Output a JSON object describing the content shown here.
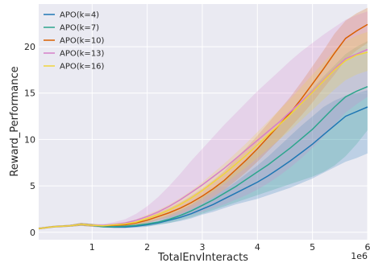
{
  "chart_data": {
    "type": "line",
    "xlabel": "TotalEnvInteracts",
    "ylabel": "Reward_Performance",
    "x_offset_label": "1e6",
    "xlim": [
      0.03,
      6.0
    ],
    "ylim": [
      -0.8,
      24.6
    ],
    "xticks": [
      1,
      2,
      3,
      4,
      5,
      6
    ],
    "yticks": [
      0,
      5,
      10,
      15,
      20
    ],
    "grid": true,
    "legend_position": "top-left",
    "x": [
      0.03,
      0.3,
      0.6,
      0.8,
      1.0,
      1.2,
      1.4,
      1.6,
      1.8,
      2.0,
      2.2,
      2.4,
      2.6,
      2.8,
      3.0,
      3.2,
      3.4,
      3.6,
      3.8,
      4.0,
      4.2,
      4.4,
      4.6,
      4.8,
      5.0,
      5.2,
      5.4,
      5.6,
      5.8,
      6.0
    ],
    "series": [
      {
        "name": "APO(k=4)",
        "color": "#1f77b4",
        "values": [
          0.4,
          0.6,
          0.7,
          0.85,
          0.75,
          0.6,
          0.55,
          0.55,
          0.65,
          0.8,
          1.0,
          1.3,
          1.6,
          2.0,
          2.5,
          3.0,
          3.6,
          4.2,
          4.8,
          5.4,
          6.1,
          6.9,
          7.7,
          8.6,
          9.5,
          10.5,
          11.5,
          12.5,
          13.0,
          13.5
        ],
        "lower": [
          0.3,
          0.5,
          0.6,
          0.7,
          0.6,
          0.5,
          0.45,
          0.45,
          0.5,
          0.6,
          0.8,
          1.0,
          1.2,
          1.5,
          1.9,
          2.2,
          2.6,
          3.0,
          3.3,
          3.6,
          4.0,
          4.4,
          4.8,
          5.3,
          5.8,
          6.4,
          7.0,
          7.6,
          8.0,
          8.5
        ],
        "upper": [
          0.5,
          0.7,
          0.8,
          1.0,
          0.9,
          0.7,
          0.65,
          0.7,
          0.8,
          1.0,
          1.2,
          1.6,
          2.0,
          2.5,
          3.1,
          3.8,
          4.6,
          5.4,
          6.3,
          7.2,
          8.2,
          9.3,
          10.4,
          11.5,
          12.5,
          13.5,
          14.2,
          14.7,
          15.0,
          15.3
        ]
      },
      {
        "name": "APO(k=7)",
        "color": "#2ca58d",
        "values": [
          0.4,
          0.6,
          0.7,
          0.85,
          0.75,
          0.6,
          0.6,
          0.65,
          0.75,
          0.9,
          1.1,
          1.4,
          1.8,
          2.3,
          2.9,
          3.5,
          4.2,
          4.9,
          5.7,
          6.5,
          7.3,
          8.2,
          9.1,
          10.1,
          11.1,
          12.3,
          13.5,
          14.6,
          15.2,
          15.7
        ],
        "lower": [
          0.3,
          0.5,
          0.6,
          0.7,
          0.6,
          0.5,
          0.5,
          0.5,
          0.55,
          0.65,
          0.8,
          1.0,
          1.3,
          1.6,
          2.0,
          2.4,
          2.8,
          3.2,
          3.6,
          4.0,
          4.4,
          4.8,
          5.2,
          5.6,
          6.0,
          6.5,
          7.2,
          8.2,
          9.5,
          11.0
        ],
        "upper": [
          0.5,
          0.7,
          0.8,
          1.0,
          0.9,
          0.7,
          0.75,
          0.8,
          1.0,
          1.2,
          1.5,
          1.9,
          2.4,
          3.0,
          3.8,
          4.6,
          5.6,
          6.6,
          7.8,
          9.0,
          10.3,
          11.6,
          12.9,
          14.2,
          15.5,
          16.8,
          18.0,
          19.2,
          20.0,
          20.6
        ]
      },
      {
        "name": "APO(k=10)",
        "color": "#d95f02",
        "values": [
          0.4,
          0.6,
          0.7,
          0.85,
          0.75,
          0.7,
          0.75,
          0.8,
          1.0,
          1.3,
          1.7,
          2.1,
          2.6,
          3.2,
          3.9,
          4.7,
          5.6,
          6.7,
          7.8,
          9.0,
          10.3,
          11.6,
          12.9,
          14.4,
          16.0,
          17.6,
          19.3,
          20.9,
          21.7,
          22.4
        ],
        "lower": [
          0.3,
          0.5,
          0.6,
          0.7,
          0.6,
          0.6,
          0.6,
          0.65,
          0.8,
          1.0,
          1.3,
          1.6,
          2.0,
          2.5,
          3.1,
          3.8,
          4.6,
          5.5,
          6.5,
          7.6,
          8.8,
          10.0,
          11.3,
          12.6,
          14.0,
          15.5,
          17.0,
          18.6,
          19.6,
          20.4
        ],
        "upper": [
          0.5,
          0.7,
          0.8,
          1.0,
          0.9,
          0.8,
          0.9,
          1.0,
          1.2,
          1.6,
          2.1,
          2.6,
          3.2,
          3.9,
          4.7,
          5.6,
          6.6,
          7.9,
          9.1,
          10.4,
          11.8,
          13.2,
          14.6,
          16.2,
          17.9,
          19.6,
          21.4,
          22.8,
          23.6,
          24.2
        ]
      },
      {
        "name": "APO(k=13)",
        "color": "#d67fc9",
        "values": [
          0.4,
          0.6,
          0.7,
          0.85,
          0.75,
          0.75,
          0.85,
          1.0,
          1.3,
          1.7,
          2.2,
          2.8,
          3.5,
          4.3,
          5.1,
          6.0,
          6.9,
          7.9,
          8.9,
          9.9,
          10.9,
          11.9,
          13.0,
          14.1,
          15.2,
          16.4,
          17.6,
          18.7,
          19.2,
          19.7
        ],
        "lower": [
          0.3,
          0.5,
          0.6,
          0.7,
          0.6,
          0.6,
          0.65,
          0.7,
          0.8,
          1.0,
          1.2,
          1.4,
          1.6,
          1.9,
          2.2,
          2.6,
          3.0,
          3.5,
          4.0,
          4.6,
          5.3,
          6.1,
          7.0,
          8.0,
          9.1,
          10.3,
          11.6,
          12.9,
          13.8,
          14.6
        ],
        "upper": [
          0.5,
          0.7,
          0.8,
          1.0,
          0.9,
          0.9,
          1.1,
          1.4,
          2.0,
          2.8,
          3.8,
          5.0,
          6.3,
          7.7,
          9.0,
          10.3,
          11.6,
          12.8,
          14.0,
          15.2,
          16.3,
          17.4,
          18.5,
          19.5,
          20.4,
          21.3,
          22.1,
          22.9,
          23.4,
          23.8
        ]
      },
      {
        "name": "APO(k=16)",
        "color": "#f0d53c",
        "values": [
          0.4,
          0.6,
          0.7,
          0.85,
          0.75,
          0.7,
          0.8,
          0.9,
          1.1,
          1.5,
          1.9,
          2.4,
          3.0,
          3.7,
          4.5,
          5.4,
          6.3,
          7.3,
          8.3,
          9.4,
          10.5,
          11.6,
          12.7,
          13.9,
          15.1,
          16.3,
          17.5,
          18.5,
          19.1,
          19.4
        ],
        "lower": [
          0.3,
          0.5,
          0.6,
          0.7,
          0.6,
          0.6,
          0.65,
          0.7,
          0.85,
          1.1,
          1.4,
          1.8,
          2.3,
          2.9,
          3.6,
          4.4,
          5.2,
          6.1,
          7.0,
          8.0,
          9.0,
          10.0,
          11.0,
          12.1,
          13.2,
          14.3,
          15.4,
          16.4,
          17.0,
          17.4
        ],
        "upper": [
          0.5,
          0.7,
          0.8,
          1.0,
          0.9,
          0.8,
          0.95,
          1.1,
          1.4,
          1.9,
          2.4,
          3.0,
          3.7,
          4.5,
          5.4,
          6.4,
          7.4,
          8.5,
          9.6,
          10.8,
          12.0,
          13.2,
          14.4,
          15.7,
          17.0,
          18.3,
          19.6,
          20.6,
          21.2,
          21.6
        ]
      }
    ]
  }
}
